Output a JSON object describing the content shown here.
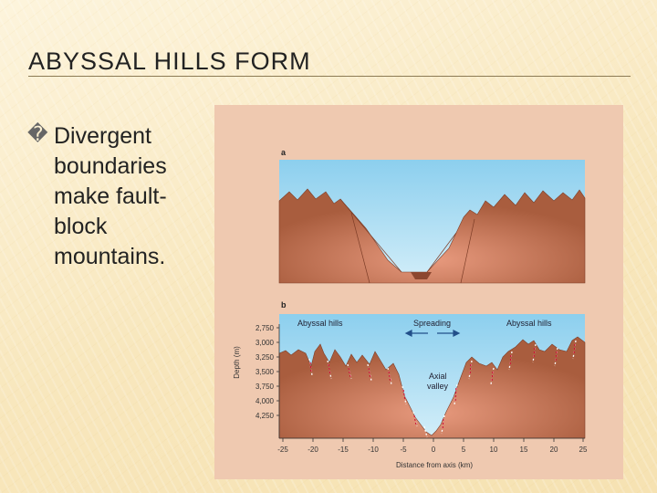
{
  "slide": {
    "title": "ABYSSAL HILLS FORM",
    "bullet_symbol": "�",
    "bullet_text": "Divergent boundaries make fault-block mountains."
  },
  "figure": {
    "panel_a": {
      "letter": "a"
    },
    "panel_b": {
      "letter": "b",
      "label_left": "Abyssal hills",
      "label_spreading": "Spreading",
      "label_right": "Abyssal hills",
      "label_valley_line1": "Axial",
      "label_valley_line2": "valley",
      "y_axis_label": "Depth (m)",
      "x_axis_label": "Distance from axis (km)",
      "y_ticks": [
        "2,750",
        "3,000",
        "3,250",
        "3,500",
        "3,750",
        "4,000",
        "4,250"
      ],
      "x_ticks": [
        "-25",
        "-20",
        "-15",
        "-10",
        "-5",
        "0",
        "5",
        "10",
        "15",
        "20",
        "25"
      ]
    },
    "colors": {
      "background": "#efc9b0",
      "water_top": "#8ccfee",
      "water_bottom": "#d0ecf8",
      "crust": "#a95d3e",
      "crust_dark": "#8c4730"
    }
  }
}
